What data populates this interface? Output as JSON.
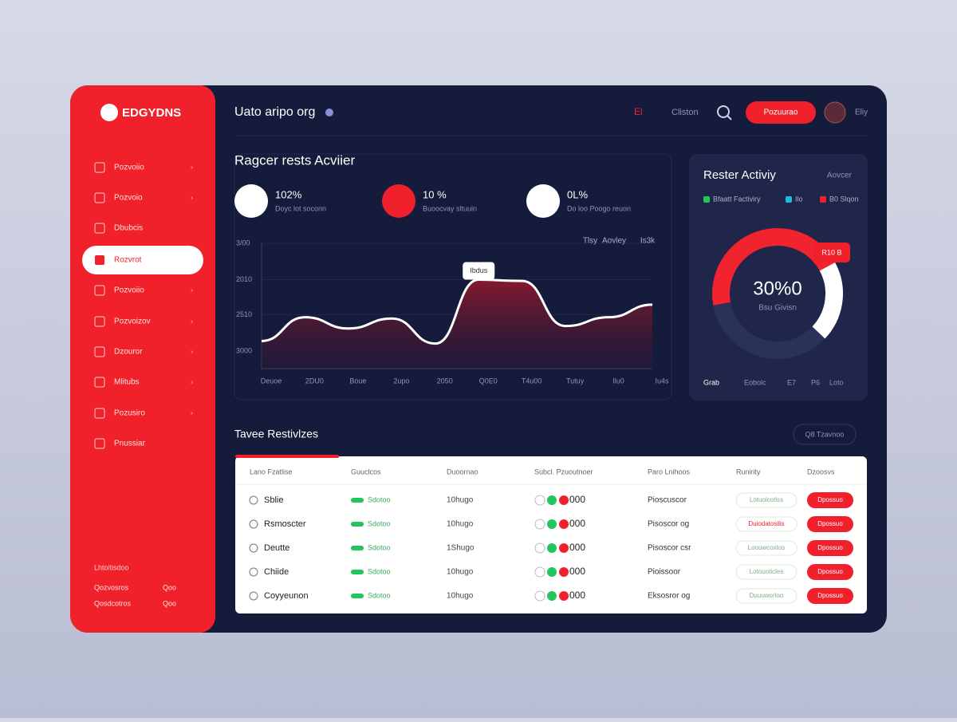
{
  "brand": "EDGYDNS",
  "header": {
    "title": "Uato aripo org",
    "items": [
      "El",
      "Cliston"
    ],
    "button": "Pozuurao",
    "user": "Eliy"
  },
  "sidebar": {
    "items": [
      "Pozvoiio",
      "Pozvoio",
      "Dbubcis",
      "Rozvrot",
      "Pozvoiio",
      "Pozvoizov",
      "Dzouror",
      "Mlitubs",
      "Pozusiro",
      "Pnussiar"
    ],
    "active": 3,
    "footer": {
      "title": "Lhtoitisdoo",
      "links": [
        [
          "Qozvosros",
          "Qoo"
        ],
        [
          "Qosdcotros",
          "Qoo"
        ]
      ]
    }
  },
  "activity": {
    "title": "Ragcer rests Acviier",
    "stats": [
      {
        "value": "102%",
        "label": "Doyc lot soconn"
      },
      {
        "value": "10 %",
        "label": "Buoocvay sltuuin"
      },
      {
        "value": "0L%",
        "label": "Do loo Poogo reuon"
      }
    ],
    "chart": {
      "type": "line",
      "legend": [
        "Tlsy",
        "Aovley",
        "Is3k"
      ],
      "tooltip": "Ibdus",
      "yticks": [
        {
          "value": 100,
          "label": "3/00"
        },
        {
          "value": 71,
          "label": "2010"
        },
        {
          "value": 43,
          "label": "2510"
        },
        {
          "value": 14,
          "label": "3000"
        }
      ],
      "ylim": [
        0,
        100
      ],
      "categories": [
        "Deuoe",
        "2DU0",
        "Boue",
        "2upo",
        "2050",
        "Q0E0",
        "T4u00",
        "Tutuy",
        "Ilu0",
        "Iu4s"
      ],
      "values": [
        22,
        41,
        32,
        40,
        20,
        71,
        70,
        34,
        41,
        51
      ]
    }
  },
  "rest": {
    "title": "Rester Activiy",
    "link": "Aovcer",
    "legend": [
      "Bfaatt Factiviry",
      "Ilo",
      "B0 Slqon"
    ],
    "center": "30%0",
    "center_label": "Bsu Givisn",
    "badge": "R10 B",
    "chart": {
      "type": "pie",
      "values": [
        45,
        20,
        35
      ],
      "colors": [
        "#f0232f",
        "#ffffff",
        "#2b3257"
      ]
    },
    "footer": [
      "Grab",
      "Eobolc",
      "E7",
      "P6",
      "Loto"
    ]
  },
  "table": {
    "title": "Tavee Restivlzes",
    "button": "Q8 Tzavnoo",
    "columns": [
      "Lano Fzatlise",
      "Guuclcos",
      "Duoornao",
      "Subcl. Pzuoutnoer",
      "Paro Lnihoos",
      "Runirity",
      "Dzoosvs"
    ],
    "rows": [
      [
        "Sblie",
        "Sdotoo",
        "10hugo",
        "000",
        "Pioscuscor",
        "Lotuoicotlss",
        "Dpossuo"
      ],
      [
        "Rsmoscter",
        "Sdotoo",
        "10hugo",
        "000",
        "Pisoscor og",
        "Duiodatosilis",
        "Dpossuo"
      ],
      [
        "Deutte",
        "Sdotoo",
        "1Shugo",
        "000",
        "Pisoscor csr",
        "Loouwcoxtos",
        "Dpossuo"
      ],
      [
        "Chiide",
        "Sdotoo",
        "10hugo",
        "000",
        "Pioissoor",
        "Lotouoticles",
        "Dpossuo"
      ],
      [
        "Coyyeunon",
        "Sdotoo",
        "10hugo",
        "000",
        "Eksosror og",
        "Duuuworloo",
        "Dpossuo"
      ]
    ]
  }
}
